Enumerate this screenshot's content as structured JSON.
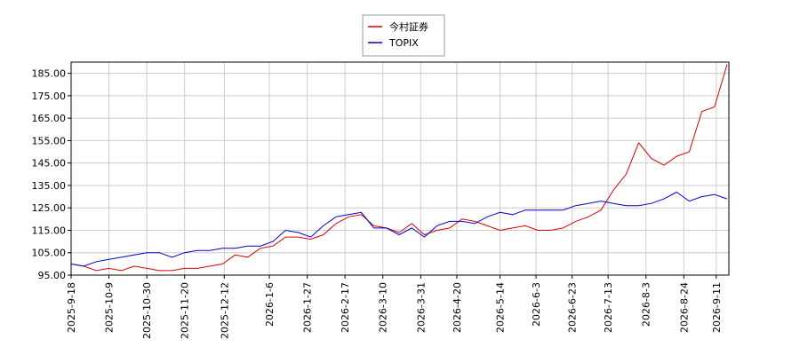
{
  "chart_data": {
    "type": "line",
    "x": [
      "2025-9-18",
      "2025-9-25",
      "2025-10-2",
      "2025-10-9",
      "2025-10-16",
      "2025-10-23",
      "2025-10-30",
      "2025-11-6",
      "2025-11-13",
      "2025-11-20",
      "2025-11-27",
      "2025-12-4",
      "2025-12-11",
      "2025-12-18",
      "2025-12-25",
      "2026-1-1",
      "2026-1-8",
      "2026-1-15",
      "2026-1-22",
      "2026-1-29",
      "2026-2-5",
      "2026-2-12",
      "2026-2-19",
      "2026-2-26",
      "2026-3-5",
      "2026-3-12",
      "2026-3-19",
      "2026-3-26",
      "2026-4-2",
      "2026-4-9",
      "2026-4-16",
      "2026-4-23",
      "2026-4-30",
      "2026-5-7",
      "2026-5-14",
      "2026-5-21",
      "2026-5-28",
      "2026-6-4",
      "2026-6-11",
      "2026-6-18",
      "2026-6-25",
      "2026-7-2",
      "2026-7-9",
      "2026-7-16",
      "2026-7-23",
      "2026-7-30",
      "2026-8-6",
      "2026-8-13",
      "2026-8-20",
      "2026-8-27",
      "2026-9-3",
      "2026-9-10",
      "2026-9-17"
    ],
    "series": [
      {
        "name": "今村証券",
        "color": "#dd0000",
        "values": [
          100,
          99,
          97,
          98,
          97,
          99,
          98,
          97,
          97,
          98,
          98,
          99,
          100,
          104,
          103,
          107,
          108,
          112,
          112,
          111,
          113,
          118,
          121,
          122,
          117,
          116,
          114,
          118,
          113,
          115,
          116,
          120,
          119,
          117,
          115,
          116,
          117,
          115,
          115,
          116,
          119,
          121,
          124,
          133,
          140,
          154,
          147,
          144,
          148,
          150,
          168,
          170,
          189
        ]
      },
      {
        "name": "TOPIX",
        "color": "#0000cc",
        "values": [
          100,
          99,
          101,
          102,
          103,
          104,
          105,
          105,
          103,
          105,
          106,
          106,
          107,
          107,
          108,
          108,
          110,
          115,
          114,
          112,
          117,
          121,
          122,
          123,
          116,
          116,
          113,
          116,
          112,
          117,
          119,
          119,
          118,
          121,
          123,
          122,
          124,
          124,
          124,
          124,
          126,
          127,
          128,
          127,
          126,
          126,
          127,
          129,
          132,
          128,
          130,
          131,
          129
        ]
      }
    ],
    "xlim": [
      "2025-9-18",
      "2026-9-18"
    ],
    "xticks": [
      "2025-9-18",
      "2025-10-9",
      "2025-10-30",
      "2025-11-20",
      "2025-12-12",
      "2026-1-6",
      "2026-1-27",
      "2026-2-17",
      "2026-3-10",
      "2026-3-31",
      "2026-4-20",
      "2026-5-14",
      "2026-6-3",
      "2026-6-23",
      "2026-7-13",
      "2026-8-3",
      "2026-8-24",
      "2026-9-11"
    ],
    "ylim": [
      95,
      190
    ],
    "yticks": [
      {
        "value": 95,
        "label": "95.00"
      },
      {
        "value": 105,
        "label": "105.00"
      },
      {
        "value": 115,
        "label": "115.00"
      },
      {
        "value": 125,
        "label": "125.00"
      },
      {
        "value": 135,
        "label": "135.00"
      },
      {
        "value": 145,
        "label": "145.00"
      },
      {
        "value": 155,
        "label": "155.00"
      },
      {
        "value": 165,
        "label": "165.00"
      },
      {
        "value": 175,
        "label": "175.00"
      },
      {
        "value": 185,
        "label": "185.00"
      }
    ],
    "grid": true,
    "legend": "top"
  }
}
